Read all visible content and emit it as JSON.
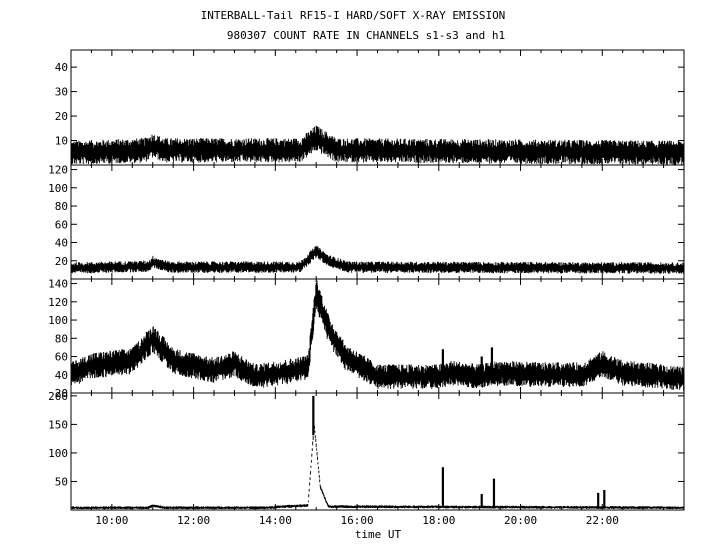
{
  "title_line1": "INTERBALL-Tail RF15-I HARD/SOFT X-RAY EMISSION",
  "title_line2": "980307  COUNT RATE IN CHANNELS s1-s3 and h1",
  "chart_data": {
    "type": "line",
    "xlabel": "time UT",
    "xlim": [
      9.0,
      24.0
    ],
    "xticks": [
      "10:00",
      "12:00",
      "14:00",
      "16:00",
      "18:00",
      "20:00",
      "22:00"
    ],
    "xtick_hours": [
      10,
      12,
      14,
      16,
      18,
      20,
      22
    ],
    "grid": false,
    "panels": [
      {
        "ylim": [
          0,
          47
        ],
        "yticks": [
          10,
          20,
          30,
          40
        ],
        "baseline": [
          [
            9.0,
            5
          ],
          [
            10.8,
            6
          ],
          [
            11.0,
            8
          ],
          [
            11.3,
            6
          ],
          [
            14.6,
            6
          ],
          [
            15.0,
            11
          ],
          [
            15.5,
            6
          ],
          [
            24.0,
            5
          ]
        ],
        "noise": 3.0,
        "spikes": []
      },
      {
        "ylim": [
          0,
          125
        ],
        "yticks": [
          20,
          40,
          60,
          80,
          100,
          120
        ],
        "baseline": [
          [
            9.0,
            12
          ],
          [
            10.9,
            14
          ],
          [
            11.0,
            19
          ],
          [
            11.4,
            13
          ],
          [
            14.6,
            13
          ],
          [
            15.0,
            30
          ],
          [
            15.3,
            20
          ],
          [
            15.8,
            13
          ],
          [
            24.0,
            12
          ]
        ],
        "noise": 3.5,
        "spikes": []
      },
      {
        "ylim": [
          20,
          145
        ],
        "yticks": [
          20,
          40,
          60,
          80,
          100,
          120,
          140
        ],
        "baseline": [
          [
            9.0,
            40
          ],
          [
            9.5,
            50
          ],
          [
            10.5,
            55
          ],
          [
            11.0,
            80
          ],
          [
            11.5,
            55
          ],
          [
            12.5,
            45
          ],
          [
            13.0,
            52
          ],
          [
            13.5,
            38
          ],
          [
            14.5,
            45
          ],
          [
            14.8,
            48
          ],
          [
            15.0,
            130
          ],
          [
            15.3,
            90
          ],
          [
            15.7,
            60
          ],
          [
            16.5,
            38
          ],
          [
            18.0,
            38
          ],
          [
            18.3,
            42
          ],
          [
            19.0,
            38
          ],
          [
            19.5,
            42
          ],
          [
            20.5,
            40
          ],
          [
            21.5,
            40
          ],
          [
            22.0,
            52
          ],
          [
            22.5,
            42
          ],
          [
            23.5,
            38
          ],
          [
            24.0,
            35
          ]
        ],
        "noise": 6.5,
        "spikes": [
          [
            18.1,
            68
          ],
          [
            19.05,
            60
          ],
          [
            19.3,
            70
          ]
        ]
      },
      {
        "ylim": [
          0,
          205
        ],
        "yticks": [
          50,
          100,
          150,
          200
        ],
        "baseline": [
          [
            9.0,
            4
          ],
          [
            10.9,
            4
          ],
          [
            11.0,
            8
          ],
          [
            11.3,
            4
          ],
          [
            13.8,
            4
          ],
          [
            14.2,
            6
          ],
          [
            14.8,
            8
          ],
          [
            14.95,
            150
          ],
          [
            15.1,
            40
          ],
          [
            15.3,
            6
          ],
          [
            24.0,
            4
          ]
        ],
        "noise": 1.6,
        "spikes": [
          [
            14.93,
            200
          ],
          [
            18.1,
            75
          ],
          [
            19.05,
            28
          ],
          [
            19.35,
            55
          ],
          [
            21.9,
            30
          ],
          [
            22.05,
            35
          ]
        ]
      }
    ]
  }
}
